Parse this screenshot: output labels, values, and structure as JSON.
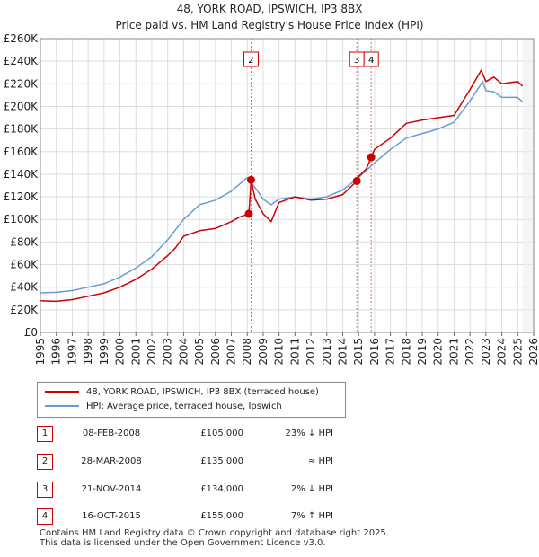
{
  "chart_data": {
    "type": "line",
    "title": "48, YORK ROAD, IPSWICH, IP3 8BX",
    "subtitle": "Price paid vs. HM Land Registry's House Price Index (HPI)",
    "xlim": [
      1995,
      2026
    ],
    "ylim": [
      0,
      260000
    ],
    "x_ticks": [
      "1995",
      "1996",
      "1997",
      "1998",
      "1999",
      "2000",
      "2001",
      "2002",
      "2003",
      "2004",
      "2005",
      "2006",
      "2007",
      "2008",
      "2009",
      "2010",
      "2011",
      "2012",
      "2013",
      "2014",
      "2015",
      "2016",
      "2017",
      "2018",
      "2019",
      "2020",
      "2021",
      "2022",
      "2023",
      "2024",
      "2025",
      "2026"
    ],
    "y_ticks": [
      {
        "value": 0,
        "label": "£0"
      },
      {
        "value": 20000,
        "label": "£20K"
      },
      {
        "value": 40000,
        "label": "£40K"
      },
      {
        "value": 60000,
        "label": "£60K"
      },
      {
        "value": 80000,
        "label": "£80K"
      },
      {
        "value": 100000,
        "label": "£100K"
      },
      {
        "value": 120000,
        "label": "£120K"
      },
      {
        "value": 140000,
        "label": "£140K"
      },
      {
        "value": 160000,
        "label": "£160K"
      },
      {
        "value": 180000,
        "label": "£180K"
      },
      {
        "value": 200000,
        "label": "£200K"
      },
      {
        "value": 220000,
        "label": "£220K"
      },
      {
        "value": 240000,
        "label": "£240K"
      },
      {
        "value": 260000,
        "label": "£260K"
      }
    ],
    "series": [
      {
        "name": "48, YORK ROAD, IPSWICH, IP3 8BX (terraced house)",
        "color": "#cc0000",
        "x": [
          1995,
          1996,
          1997,
          1998,
          1999,
          2000,
          2001,
          2002,
          2003,
          2003.5,
          2004,
          2005,
          2006,
          2007,
          2007.5,
          2008.1,
          2008.15,
          2008.24,
          2008.5,
          2009,
          2009.5,
          2010,
          2011,
          2012,
          2013,
          2014,
          2014.89,
          2015,
          2015.5,
          2015.79,
          2016,
          2017,
          2018,
          2019,
          2020,
          2021,
          2022,
          2022.7,
          2023,
          2023.5,
          2024,
          2025,
          2025.3
        ],
        "y": [
          28000,
          27500,
          29000,
          32000,
          35000,
          40000,
          47000,
          56000,
          68000,
          75000,
          85000,
          90000,
          92000,
          98000,
          102000,
          105000,
          115000,
          135000,
          118000,
          105000,
          98000,
          115000,
          120000,
          117000,
          118000,
          122000,
          134000,
          138000,
          145000,
          155000,
          162000,
          172000,
          185000,
          188000,
          190000,
          192000,
          215000,
          232000,
          222000,
          226000,
          220000,
          222000,
          218000
        ]
      },
      {
        "name": "HPI: Average price, terraced house, Ipswich",
        "color": "#6a9ad4",
        "x": [
          1995,
          1996,
          1997,
          1998,
          1999,
          2000,
          2001,
          2002,
          2003,
          2004,
          2005,
          2006,
          2007,
          2008,
          2008.5,
          2009,
          2009.5,
          2010,
          2011,
          2012,
          2013,
          2014,
          2015,
          2016,
          2017,
          2018,
          2019,
          2020,
          2021,
          2022,
          2022.8,
          2023,
          2023.5,
          2024,
          2025,
          2025.3
        ],
        "y": [
          35000,
          35500,
          37000,
          40000,
          43000,
          49000,
          57000,
          67000,
          82000,
          100000,
          113000,
          117000,
          125000,
          137000,
          128000,
          118000,
          113000,
          118000,
          120000,
          118000,
          120000,
          126000,
          137000,
          150000,
          162000,
          172000,
          176000,
          180000,
          186000,
          205000,
          222000,
          214000,
          213000,
          208000,
          208000,
          204000
        ]
      }
    ],
    "sales": [
      {
        "label": "1",
        "x": 2008.1,
        "y": 105000
      },
      {
        "label": "2",
        "x": 2008.24,
        "y": 135000
      },
      {
        "label": "3",
        "x": 2014.89,
        "y": 134000
      },
      {
        "label": "4",
        "x": 2015.79,
        "y": 155000
      }
    ],
    "marker_lines": [
      {
        "label": "2",
        "x": 2008.24
      },
      {
        "label": "3",
        "x": 2014.89
      },
      {
        "label": "4",
        "x": 2015.79
      }
    ],
    "grid": true
  },
  "legend": {
    "property_label": "48, YORK ROAD, IPSWICH, IP3 8BX (terraced house)",
    "hpi_label": "HPI: Average price, terraced house, Ipswich",
    "property_color": "#cc0000",
    "hpi_color": "#6a9ad4"
  },
  "transactions": [
    {
      "num": "1",
      "date": "08-FEB-2008",
      "price": "£105,000",
      "hpi": "23% ↓ HPI"
    },
    {
      "num": "2",
      "date": "28-MAR-2008",
      "price": "£135,000",
      "hpi": "≈ HPI"
    },
    {
      "num": "3",
      "date": "21-NOV-2014",
      "price": "£134,000",
      "hpi": "2% ↓ HPI"
    },
    {
      "num": "4",
      "date": "16-OCT-2015",
      "price": "£155,000",
      "hpi": "7% ↑ HPI"
    }
  ],
  "footer": {
    "line1": "Contains HM Land Registry data © Crown copyright and database right 2025.",
    "line2": "This data is licensed under the Open Government Licence v3.0."
  }
}
